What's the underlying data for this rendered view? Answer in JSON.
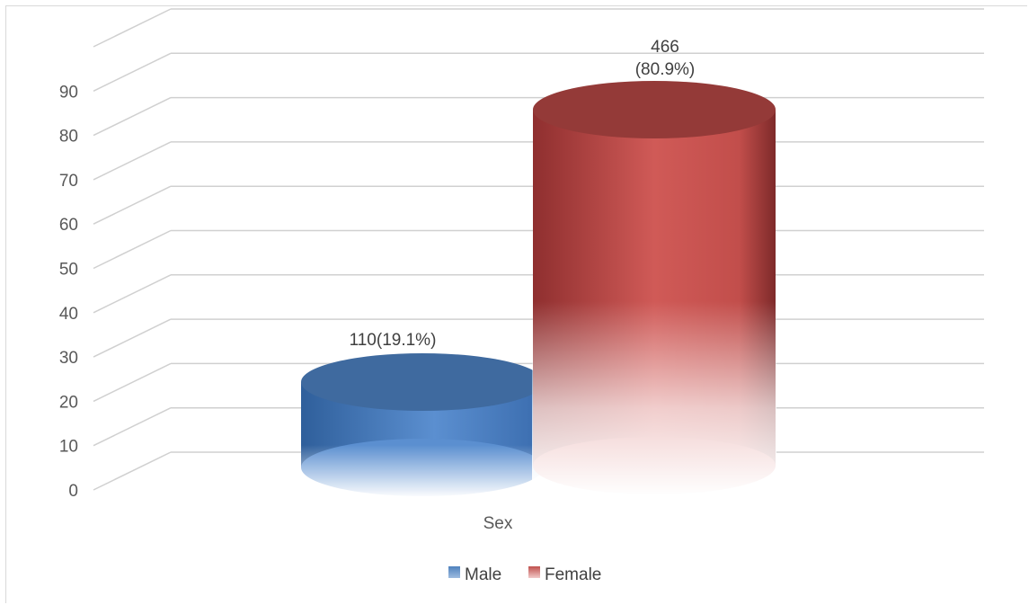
{
  "chart_data": {
    "type": "bar",
    "subtype": "3d-cylinder",
    "categories": [
      "Sex"
    ],
    "series": [
      {
        "name": "Male",
        "value": 19.1,
        "label": "110(19.1%)",
        "color": "#4f81bd"
      },
      {
        "name": "Female",
        "value": 80.9,
        "label_line1": "466",
        "label_line2": "(80.9%)",
        "color": "#c0504d"
      }
    ],
    "y_ticks": [
      "0",
      "10",
      "20",
      "30",
      "40",
      "50",
      "60",
      "70",
      "80",
      "90"
    ],
    "ylim": [
      0,
      90
    ],
    "grid": true,
    "legend_position": "bottom"
  }
}
